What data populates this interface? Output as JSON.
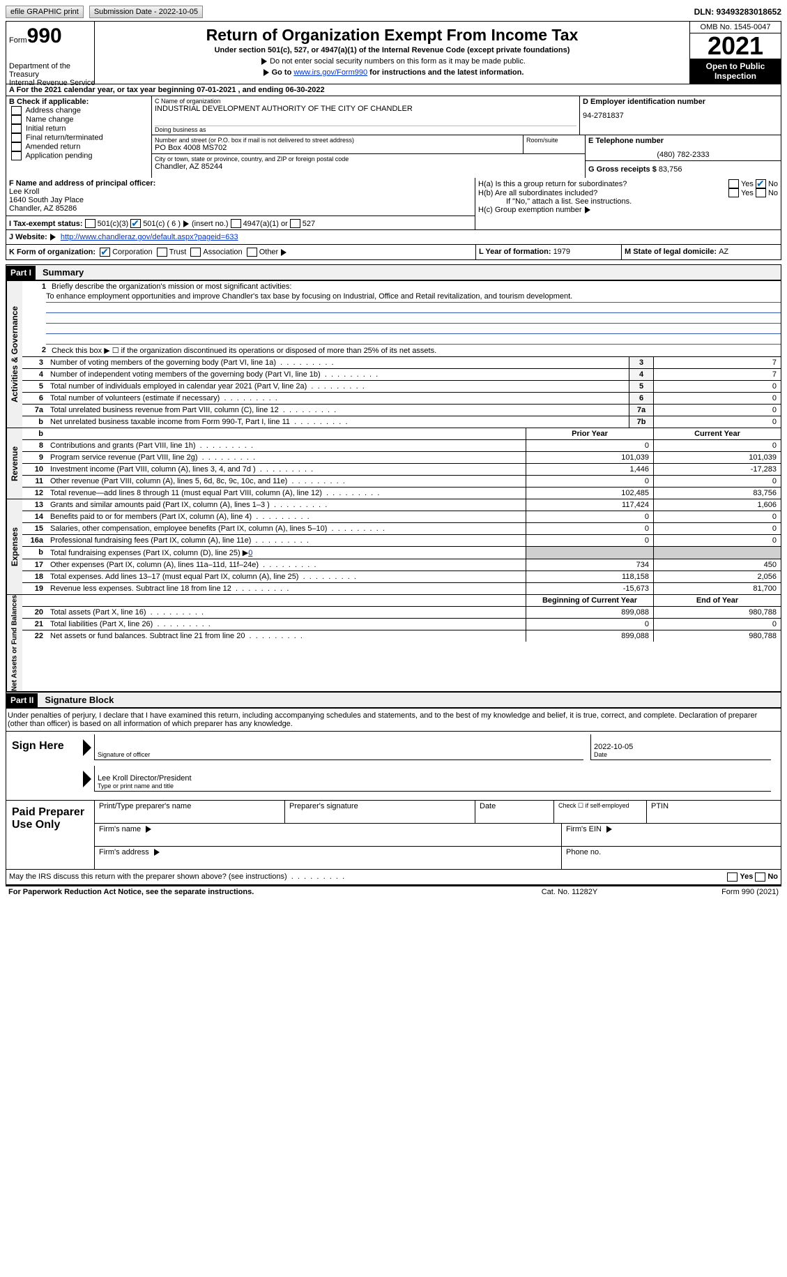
{
  "topBar": {
    "efile": "efile GRAPHIC print",
    "submission": "Submission Date - 2022-10-05",
    "dln": "DLN: 93493283018652"
  },
  "header": {
    "formWord": "Form",
    "form990": "990",
    "dept": "Department of the Treasury",
    "irs": "Internal Revenue Service",
    "title": "Return of Organization Exempt From Income Tax",
    "sub": "Under section 501(c), 527, or 4947(a)(1) of the Internal Revenue Code (except private foundations)",
    "note1": "Do not enter social security numbers on this form as it may be made public.",
    "note2a": "Go to ",
    "note2link": "www.irs.gov/Form990",
    "note2b": " for instructions and the latest information.",
    "omb": "OMB No. 1545-0047",
    "year": "2021",
    "inspect": "Open to Public Inspection"
  },
  "A": {
    "text": "A For the 2021 calendar year, or tax year beginning 07-01-2021    , and ending 06-30-2022"
  },
  "B": {
    "label": "B Check if applicable:",
    "items": [
      "Address change",
      "Name change",
      "Initial return",
      "Final return/terminated",
      "Amended return",
      "Application pending"
    ]
  },
  "C": {
    "nameLbl": "C Name of organization",
    "name": "INDUSTRIAL DEVELOPMENT AUTHORITY OF THE CITY OF CHANDLER",
    "dbaLbl": "Doing business as",
    "dba": "",
    "addrLbl": "Number and street (or P.O. box if mail is not delivered to street address)",
    "addr": "PO Box 4008 MS702",
    "room": "Room/suite",
    "cityLbl": "City or town, state or province, country, and ZIP or foreign postal code",
    "city": "Chandler, AZ  85244"
  },
  "D": {
    "lbl": "D Employer identification number",
    "val": "94-2781837"
  },
  "E": {
    "lbl": "E Telephone number",
    "val": "(480) 782-2333"
  },
  "G": {
    "lbl": "G Gross receipts $ ",
    "val": "83,756"
  },
  "F": {
    "lbl": "F  Name and address of principal officer:",
    "name": "Lee Kroll",
    "addr1": "1640 South Jay Place",
    "addr2": "Chandler, AZ  85286"
  },
  "H": {
    "a": "H(a)  Is this a group return for subordinates?",
    "b": "H(b)  Are all subordinates included?",
    "bNote": "If \"No,\" attach a list. See instructions.",
    "c": "H(c)  Group exemption number",
    "yes": "Yes",
    "no": "No"
  },
  "I": {
    "lbl": "I    Tax-exempt status:",
    "c3": "501(c)(3)",
    "c": "501(c) ( 6 )",
    "ins": "(insert no.)",
    "a1": "4947(a)(1) or",
    "s527": "527"
  },
  "J": {
    "lbl": "J   Website:",
    "url": "http://www.chandleraz.gov/default.aspx?pageid=633"
  },
  "K": {
    "lbl": "K Form of organization:",
    "corp": "Corporation",
    "trust": "Trust",
    "assoc": "Association",
    "other": "Other"
  },
  "L": {
    "lbl": "L Year of formation: ",
    "val": "1979"
  },
  "M": {
    "lbl": "M State of legal domicile: ",
    "val": "AZ"
  },
  "part1": {
    "hdr": "Part I",
    "title": "Summary"
  },
  "gov": {
    "label": "Activities & Governance",
    "l1": "Briefly describe the organization's mission or most significant activities:",
    "mission": "To enhance employment opportunities and improve Chandler's tax base by focusing on Industrial, Office and Retail revitalization, and tourism development.",
    "l2": "Check this box ▶ ☐  if the organization discontinued its operations or disposed of more than 25% of its net assets.",
    "rows": [
      [
        "3",
        "Number of voting members of the governing body (Part VI, line 1a)",
        "3",
        "7"
      ],
      [
        "4",
        "Number of independent voting members of the governing body (Part VI, line 1b)",
        "4",
        "7"
      ],
      [
        "5",
        "Total number of individuals employed in calendar year 2021 (Part V, line 2a)",
        "5",
        "0"
      ],
      [
        "6",
        "Total number of volunteers (estimate if necessary)",
        "6",
        "0"
      ],
      [
        "7a",
        "Total unrelated business revenue from Part VIII, column (C), line 12",
        "7a",
        "0"
      ],
      [
        "b",
        "Net unrelated business taxable income from Form 990-T, Part I, line 11",
        "7b",
        "0"
      ]
    ]
  },
  "rev": {
    "label": "Revenue",
    "hdr": [
      "Prior Year",
      "Current Year"
    ],
    "rows": [
      [
        "8",
        "Contributions and grants (Part VIII, line 1h)",
        "0",
        "0"
      ],
      [
        "9",
        "Program service revenue (Part VIII, line 2g)",
        "101,039",
        "101,039"
      ],
      [
        "10",
        "Investment income (Part VIII, column (A), lines 3, 4, and 7d )",
        "1,446",
        "-17,283"
      ],
      [
        "11",
        "Other revenue (Part VIII, column (A), lines 5, 6d, 8c, 9c, 10c, and 11e)",
        "0",
        "0"
      ],
      [
        "12",
        "Total revenue—add lines 8 through 11 (must equal Part VIII, column (A), line 12)",
        "102,485",
        "83,756"
      ]
    ]
  },
  "exp": {
    "label": "Expenses",
    "rows": [
      [
        "13",
        "Grants and similar amounts paid (Part IX, column (A), lines 1–3 )",
        "117,424",
        "1,606"
      ],
      [
        "14",
        "Benefits paid to or for members (Part IX, column (A), line 4)",
        "0",
        "0"
      ],
      [
        "15",
        "Salaries, other compensation, employee benefits (Part IX, column (A), lines 5–10)",
        "0",
        "0"
      ],
      [
        "16a",
        "Professional fundraising fees (Part IX, column (A), line 11e)",
        "0",
        "0"
      ],
      [
        "b",
        "Total fundraising expenses (Part IX, column (D), line 25) ▶",
        "gray",
        "gray"
      ],
      [
        "17",
        "Other expenses (Part IX, column (A), lines 11a–11d, 11f–24e)",
        "734",
        "450"
      ],
      [
        "18",
        "Total expenses. Add lines 13–17 (must equal Part IX, column (A), line 25)",
        "118,158",
        "2,056"
      ],
      [
        "19",
        "Revenue less expenses. Subtract line 18 from line 12",
        "-15,673",
        "81,700"
      ]
    ],
    "l16b": "0"
  },
  "net": {
    "label": "Net Assets or Fund Balances",
    "hdr": [
      "Beginning of Current Year",
      "End of Year"
    ],
    "rows": [
      [
        "20",
        "Total assets (Part X, line 16)",
        "899,088",
        "980,788"
      ],
      [
        "21",
        "Total liabilities (Part X, line 26)",
        "0",
        "0"
      ],
      [
        "22",
        "Net assets or fund balances. Subtract line 21 from line 20",
        "899,088",
        "980,788"
      ]
    ]
  },
  "part2": {
    "hdr": "Part II",
    "title": "Signature Block"
  },
  "pen": "Under penalties of perjury, I declare that I have examined this return, including accompanying schedules and statements, and to the best of my knowledge and belief, it is true, correct, and complete. Declaration of preparer (other than officer) is based on all information of which preparer has any knowledge.",
  "sign": {
    "here": "Sign Here",
    "sigOff": "Signature of officer",
    "date": "Date",
    "dateVal": "2022-10-05",
    "nameVal": "Lee Kroll  Director/President",
    "nameLbl": "Type or print name and title"
  },
  "prep": {
    "lbl": "Paid Preparer Use Only",
    "c1": "Print/Type preparer's name",
    "c2": "Preparer's signature",
    "c3": "Date",
    "c4": "Check ☐ if self-employed",
    "c5": "PTIN",
    "fn": "Firm's name",
    "fein": "Firm's EIN",
    "fa": "Firm's address",
    "ph": "Phone no."
  },
  "may": {
    "text": "May the IRS discuss this return with the preparer shown above? (see instructions)",
    "yes": "Yes",
    "no": "No"
  },
  "foot": {
    "l": "For Paperwork Reduction Act Notice, see the separate instructions.",
    "m": "Cat. No. 11282Y",
    "r": "Form 990 (2021)"
  }
}
